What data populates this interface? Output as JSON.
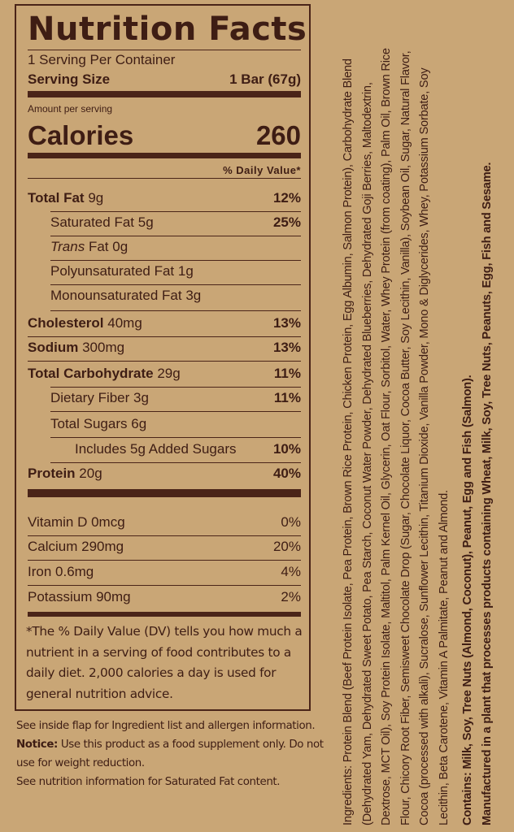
{
  "label": {
    "title": "Nutrition Facts",
    "servings_per_container": "1 Serving Per Container",
    "serving_size_label": "Serving Size",
    "serving_size_value": "1 Bar (67g)",
    "amount_per_serving": "Amount per serving",
    "calories_label": "Calories",
    "calories_value": "260",
    "dv_header": "% Daily Value*",
    "nutrients": [
      {
        "name": "Total Fat",
        "amount": "9g",
        "dv": "12%"
      },
      {
        "name": "Saturated Fat",
        "amount": "5g",
        "dv": "25%"
      },
      {
        "name_italic": "Trans",
        "name": "Fat",
        "amount": "0g",
        "dv": ""
      },
      {
        "name": "Polyunsaturated Fat",
        "amount": "1g",
        "dv": ""
      },
      {
        "name": "Monounsaturated Fat",
        "amount": "3g",
        "dv": ""
      },
      {
        "name": "Cholesterol",
        "amount": "40mg",
        "dv": "13%"
      },
      {
        "name": "Sodium",
        "amount": "300mg",
        "dv": "13%"
      },
      {
        "name": "Total Carbohydrate",
        "amount": "29g",
        "dv": "11%"
      },
      {
        "name": "Dietary Fiber",
        "amount": "3g",
        "dv": "11%"
      },
      {
        "name": "Total Sugars",
        "amount": "6g",
        "dv": ""
      },
      {
        "name": "Includes 5g Added Sugars",
        "amount": "",
        "dv": "10%"
      },
      {
        "name": "Protein",
        "amount": "20g",
        "dv": "40%"
      }
    ],
    "vitamins": [
      {
        "text": "Vitamin D 0mcg",
        "dv": "0%"
      },
      {
        "text": "Calcium 290mg",
        "dv": "20%"
      },
      {
        "text": "Iron 0.6mg",
        "dv": "4%"
      },
      {
        "text": "Potassium 90mg",
        "dv": "2%"
      }
    ],
    "footnote": "*The % Daily Value (DV) tells you how much a nutrient in a serving of food contributes to a daily diet. 2,000 calories a day is used for general nutrition advice."
  },
  "notes": {
    "line1": "See inside flap for Ingredient list and allergen information.",
    "notice_label": "Notice:",
    "notice_text": " Use this product as a food supplement only. Do not use for weight reduction.",
    "line3": "See nutrition information for Saturated Fat content."
  },
  "ingredients": {
    "lines": [
      "Ingredients: Protein Blend (Beef Protein Isolate, Pea Protein, Brown Rice Protein, Chicken Protein, Egg Albumin, Salmon Protein), Carbohydrate Blend",
      "(Dehydrated Yam, Dehydrated Sweet Potato, Pea Starch, Coconut Water Powder, Dehydrated Blueberries, Dehydrated Goji Berries, Maltodextrin,",
      "Dextrose, MCT Oil), Soy Protein Isolate, Maltitol, Palm Kernel Oil, Glycerin, Oat Flour, Sorbitol, Water, Whey Protein (from coating), Palm Oil, Brown Rice",
      "Flour, Chicory Root Fiber, Semisweet Chocolate Drop (Sugar, Chocolate Liquor, Cocoa Butter, Soy Lecithin, Vanilla), Soybean Oil, Sugar, Natural Flavor,",
      "Cocoa (processed with alkali), Sucralose, Sunflower Lecithin, Titanium Dioxide, Vanilla Powder, Mono & Diglycerides, Whey, Potassium Sorbate, Soy",
      "Lecithin, Beta Carotene, Vitamin A Palmitate, Peanut and Almond."
    ],
    "contains": "Contains: Milk, Soy, Tree Nuts (Almond, Coconut), Peanut, Egg and Fish (Salmon).",
    "manufactured": "Manufactured in a plant that processes products containing Wheat, Milk, Soy, Tree Nuts, Peanuts, Egg, Fish and Sesame."
  }
}
